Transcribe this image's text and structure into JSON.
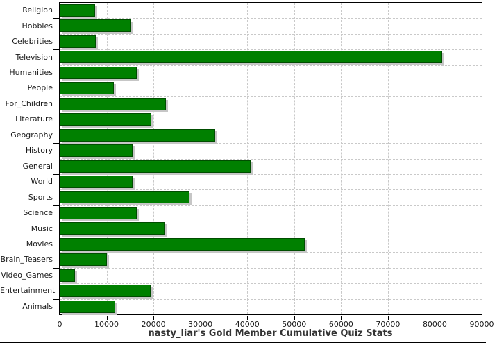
{
  "chart_data": {
    "type": "bar",
    "orientation": "horizontal",
    "title": "nasty_liar's Gold Member Cumulative Quiz Stats",
    "categories": [
      "Religion",
      "Hobbies",
      "Celebrities",
      "Television",
      "Humanities",
      "People",
      "For_Children",
      "Literature",
      "Geography",
      "History",
      "General",
      "World",
      "Sports",
      "Science",
      "Music",
      "Movies",
      "Brain_Teasers",
      "Video_Games",
      "Entertainment",
      "Animals"
    ],
    "values": [
      7300,
      15000,
      7400,
      81200,
      16200,
      11200,
      22300,
      19200,
      32800,
      15300,
      40400,
      15200,
      27400,
      16100,
      22000,
      52000,
      9800,
      2900,
      19100,
      11500
    ],
    "xlim": [
      0,
      90000
    ],
    "x_ticks": [
      0,
      10000,
      20000,
      30000,
      40000,
      50000,
      60000,
      70000,
      80000,
      90000
    ],
    "x_tick_labels": [
      "0",
      "10000",
      "20000",
      "30000",
      "40000",
      "50000",
      "60000",
      "70000",
      "80000",
      "90000"
    ],
    "grid": "dashed-both-axes",
    "legend": "none",
    "colors": {
      "bar_fill": "#008000",
      "bar_border": "#004d00",
      "bar_shadow": "#c6c6c6",
      "grid": "#c9c9c9",
      "axis_frame": "#000000",
      "tick_text": "#1a1a1a",
      "title_text": "#333333",
      "background": "#ffffff"
    }
  }
}
